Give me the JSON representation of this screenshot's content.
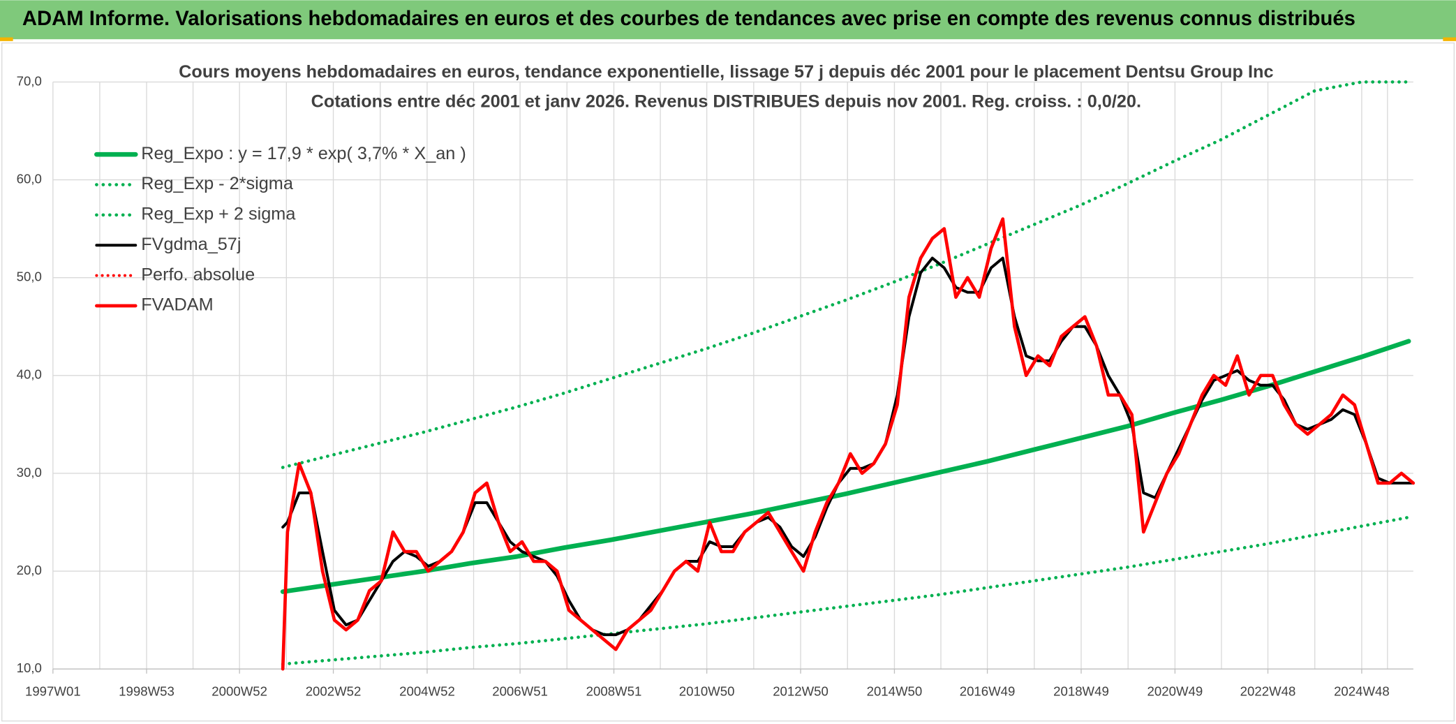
{
  "header": {
    "title": "ADAM Informe. Valorisations hebdomadaires en euros et des courbes de tendances avec prise en compte des revenus connus distribués"
  },
  "chart_data": {
    "type": "line",
    "title": "Cours moyens hebdomadaires en euros, tendance exponentielle, lissage 57 j depuis déc 2001 pour le placement Dentsu Group Inc",
    "subtitle": "Cotations entre déc 2001 et janv 2026. Revenus DISTRIBUES depuis nov 2001. Reg. croiss. : 0,0/20.",
    "xlim": [
      "1997W01",
      "2026W01"
    ],
    "xticks": [
      "1997W01",
      "1998W53",
      "2000W52",
      "2002W52",
      "2004W52",
      "2006W51",
      "2008W51",
      "2010W50",
      "2012W50",
      "2014W50",
      "2016W49",
      "2018W49",
      "2020W49",
      "2022W48",
      "2024W48"
    ],
    "ylim": [
      10,
      70
    ],
    "yticks": [
      {
        "value": 10,
        "label": "10,0"
      },
      {
        "value": 20,
        "label": "20,0"
      },
      {
        "value": 30,
        "label": "30,0"
      },
      {
        "value": 40,
        "label": "40,0"
      },
      {
        "value": 50,
        "label": "50,0"
      },
      {
        "value": 60,
        "label": "60,0"
      },
      {
        "value": 70,
        "label": "70,0"
      }
    ],
    "grid": true,
    "legend": "top-left",
    "x": [
      "2001W48",
      "2002W01",
      "2002W14",
      "2002W27",
      "2002W40",
      "2003W01",
      "2003W14",
      "2003W27",
      "2003W40",
      "2004W01",
      "2004W14",
      "2004W27",
      "2004W40",
      "2005W01",
      "2005W14",
      "2005W27",
      "2005W40",
      "2006W01",
      "2006W14",
      "2006W27",
      "2006W40",
      "2007W01",
      "2007W14",
      "2007W27",
      "2007W40",
      "2008W01",
      "2008W14",
      "2008W27",
      "2008W40",
      "2009W01",
      "2009W14",
      "2009W27",
      "2009W40",
      "2010W01",
      "2010W14",
      "2010W27",
      "2010W40",
      "2011W01",
      "2011W14",
      "2011W27",
      "2011W40",
      "2012W01",
      "2012W14",
      "2012W27",
      "2012W40",
      "2013W01",
      "2013W14",
      "2013W27",
      "2013W40",
      "2014W01",
      "2014W14",
      "2014W27",
      "2014W40",
      "2015W01",
      "2015W14",
      "2015W27",
      "2015W40",
      "2016W01",
      "2016W14",
      "2016W27",
      "2016W40",
      "2017W01",
      "2017W14",
      "2017W27",
      "2017W40",
      "2018W01",
      "2018W14",
      "2018W27",
      "2018W40",
      "2019W01",
      "2019W14",
      "2019W27",
      "2019W40",
      "2020W01",
      "2020W14",
      "2020W27",
      "2020W40",
      "2021W01",
      "2021W14",
      "2021W27",
      "2021W40",
      "2022W01",
      "2022W14",
      "2022W27",
      "2022W40",
      "2023W01",
      "2023W14",
      "2023W27",
      "2023W40",
      "2024W01",
      "2024W14",
      "2024W27",
      "2024W40",
      "2025W01",
      "2025W14",
      "2025W27",
      "2025W40",
      "2026W01"
    ],
    "series": [
      {
        "name": "Reg_Expo : y = 17,9 * exp( 3,7% *  X_an )",
        "color": "#00b050",
        "style": "solid",
        "width": 5,
        "x": [
          "2001W48",
          "2002W48",
          "2003W48",
          "2004W48",
          "2005W48",
          "2006W48",
          "2007W48",
          "2008W48",
          "2009W48",
          "2010W48",
          "2011W48",
          "2012W48",
          "2013W48",
          "2014W48",
          "2015W48",
          "2016W48",
          "2017W48",
          "2018W48",
          "2019W48",
          "2020W48",
          "2021W48",
          "2022W48",
          "2023W48",
          "2024W48",
          "2025W48"
        ],
        "values": [
          17.9,
          18.6,
          19.3,
          20.0,
          20.8,
          21.5,
          22.4,
          23.2,
          24.1,
          25.0,
          25.9,
          26.9,
          27.9,
          29.0,
          30.1,
          31.2,
          32.4,
          33.6,
          34.8,
          36.2,
          37.5,
          38.9,
          40.4,
          41.9,
          43.5
        ]
      },
      {
        "name": "Reg_Exp - 2*sigma",
        "color": "#00b050",
        "style": "dotted",
        "width": 3.5,
        "x": [
          "2001W48",
          "2002W48",
          "2003W48",
          "2004W48",
          "2005W48",
          "2006W48",
          "2007W48",
          "2008W48",
          "2009W48",
          "2010W48",
          "2011W48",
          "2012W48",
          "2013W48",
          "2014W48",
          "2015W48",
          "2016W48",
          "2017W48",
          "2018W48",
          "2019W48",
          "2020W48",
          "2021W48",
          "2022W48",
          "2023W48",
          "2024W48",
          "2025W48"
        ],
        "values": [
          10.5,
          10.9,
          11.3,
          11.7,
          12.2,
          12.6,
          13.1,
          13.6,
          14.1,
          14.6,
          15.2,
          15.8,
          16.4,
          17.0,
          17.6,
          18.3,
          19.0,
          19.7,
          20.4,
          21.2,
          22.0,
          22.8,
          23.7,
          24.6,
          25.5
        ]
      },
      {
        "name": "Reg_Exp + 2 sigma",
        "color": "#00b050",
        "style": "dotted",
        "width": 3.5,
        "x": [
          "2001W48",
          "2002W48",
          "2003W48",
          "2004W48",
          "2005W48",
          "2006W48",
          "2007W48",
          "2008W48",
          "2009W48",
          "2010W48",
          "2011W48",
          "2012W48",
          "2013W48",
          "2014W48",
          "2015W48",
          "2016W48",
          "2017W48",
          "2018W48",
          "2019W48",
          "2020W48",
          "2021W48",
          "2022W48",
          "2023W48",
          "2024W48",
          "2025W48"
        ],
        "values": [
          30.6,
          31.8,
          33.0,
          34.2,
          35.5,
          36.8,
          38.2,
          39.7,
          41.2,
          42.7,
          44.3,
          46.0,
          47.7,
          49.5,
          51.4,
          53.4,
          55.4,
          57.4,
          59.6,
          61.9,
          64.1,
          66.6,
          69.1,
          70,
          70
        ]
      },
      {
        "name": "FVgdma_57j",
        "color": "#000000",
        "style": "solid",
        "width": 3,
        "values": [
          24.5,
          25,
          28,
          28,
          22,
          16,
          14.5,
          15,
          17,
          19,
          21,
          22,
          21.5,
          20.5,
          21,
          22,
          24,
          27,
          27,
          25,
          23,
          22,
          21.5,
          21,
          19.5,
          17,
          15,
          14,
          13.5,
          13.5,
          14,
          15,
          16.5,
          18,
          20,
          21,
          21,
          23,
          22.5,
          22.5,
          24,
          25,
          25.5,
          24.5,
          22.5,
          21.5,
          23.5,
          26.5,
          29,
          30.5,
          30.5,
          31,
          33,
          38,
          46,
          50.5,
          52,
          51,
          49,
          48.5,
          48.5,
          51,
          52,
          46,
          42,
          41.5,
          41.5,
          43.5,
          45,
          45,
          43,
          40,
          38,
          35,
          28,
          27.5,
          30,
          32.5,
          35,
          37.5,
          39.5,
          40,
          40.5,
          39.5,
          39,
          39,
          37.5,
          35,
          34.5,
          35,
          35.5,
          36.5,
          36,
          33,
          29.5,
          29,
          29,
          29
        ]
      },
      {
        "name": "Perfo. absolue",
        "color": "#ff0000",
        "style": "dotted",
        "width": 3,
        "values": [
          10,
          24,
          31,
          28,
          20,
          15,
          14,
          15,
          18,
          19,
          24,
          22,
          22,
          20,
          21,
          22,
          24,
          28,
          29,
          25,
          22,
          23,
          21,
          21,
          20,
          16,
          15,
          14,
          13,
          12,
          14,
          15,
          16,
          18,
          20,
          21,
          20,
          25,
          22,
          22,
          24,
          25,
          26,
          24,
          22,
          20,
          24,
          27,
          29,
          32,
          30,
          31,
          33,
          37,
          48,
          52,
          54,
          55,
          48,
          50,
          48,
          53,
          56,
          45,
          40,
          42,
          41,
          44,
          45,
          46,
          43,
          38,
          38,
          36,
          24,
          27,
          30,
          32,
          35,
          38,
          40,
          39,
          42,
          38,
          40,
          40,
          37,
          35,
          34,
          35,
          36,
          38,
          37,
          33,
          29,
          29,
          30,
          29
        ]
      },
      {
        "name": "FVADAM",
        "color": "#ff0000",
        "style": "solid",
        "width": 3.5,
        "values": [
          10,
          24,
          31,
          28,
          20,
          15,
          14,
          15,
          18,
          19,
          24,
          22,
          22,
          20,
          21,
          22,
          24,
          28,
          29,
          25,
          22,
          23,
          21,
          21,
          20,
          16,
          15,
          14,
          13,
          12,
          14,
          15,
          16,
          18,
          20,
          21,
          20,
          25,
          22,
          22,
          24,
          25,
          26,
          24,
          22,
          20,
          24,
          27,
          29,
          32,
          30,
          31,
          33,
          37,
          48,
          52,
          54,
          55,
          48,
          50,
          48,
          53,
          56,
          45,
          40,
          42,
          41,
          44,
          45,
          46,
          43,
          38,
          38,
          36,
          24,
          27,
          30,
          32,
          35,
          38,
          40,
          39,
          42,
          38,
          40,
          40,
          37,
          35,
          34,
          35,
          36,
          38,
          37,
          33,
          29,
          29,
          30,
          29
        ]
      }
    ]
  }
}
